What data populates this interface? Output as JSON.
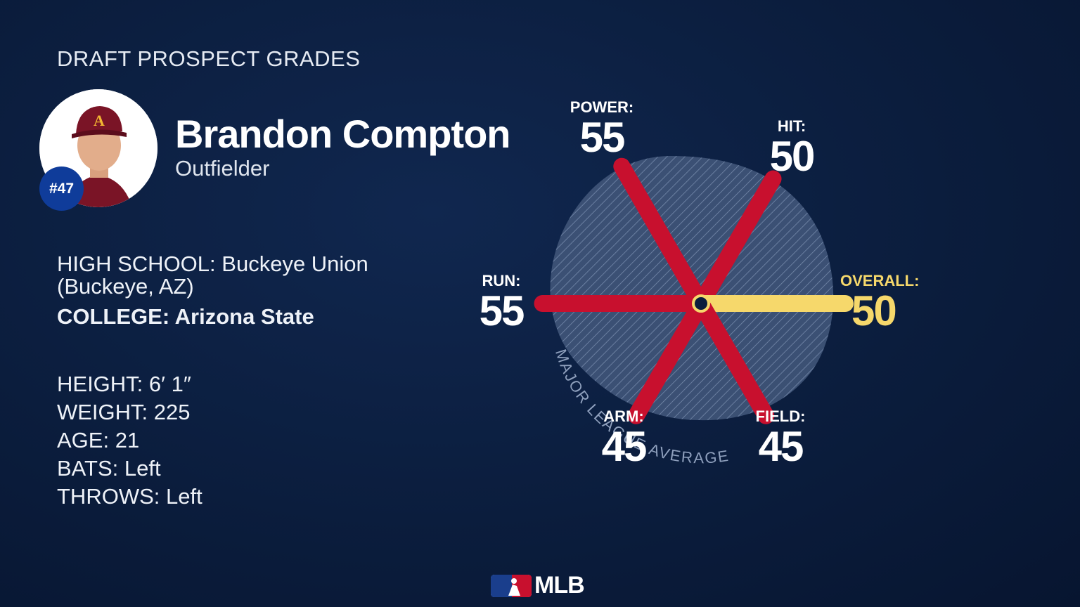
{
  "header": {
    "title": "DRAFT PROSPECT GRADES"
  },
  "player": {
    "name": "Brandon Compton",
    "position": "Outfielder",
    "jersey": "#47",
    "school_label": "HIGH SCHOOL:",
    "school_value": "Buckeye Union (Buckeye, AZ)",
    "college_label": "COLLEGE:",
    "college_value": "Arizona State",
    "stats": [
      {
        "label": "HEIGHT:",
        "value": "6′ 1″"
      },
      {
        "label": "WEIGHT:",
        "value": "225"
      },
      {
        "label": "AGE:",
        "value": "21"
      },
      {
        "label": "BATS:",
        "value": "Left"
      },
      {
        "label": "THROWS:",
        "value": "Left"
      }
    ]
  },
  "colors": {
    "background": "#0b1d3d",
    "tool_bar": "#c8102e",
    "overall_bar": "#f6d86b",
    "average_area": "#4a5f82",
    "badge": "#0f3c9a"
  },
  "chart_data": {
    "type": "radial-bar",
    "reference_label": "MAJOR LEAGUE AVERAGE",
    "reference_value": 50,
    "grades": [
      {
        "label": "POWER:",
        "value": 55
      },
      {
        "label": "HIT:",
        "value": 50
      },
      {
        "label": "OVERALL:",
        "value": 50,
        "highlight": true
      },
      {
        "label": "FIELD:",
        "value": 45
      },
      {
        "label": "ARM:",
        "value": 45
      },
      {
        "label": "RUN:",
        "value": 55
      }
    ]
  },
  "footer": {
    "logo_text": "MLB"
  }
}
